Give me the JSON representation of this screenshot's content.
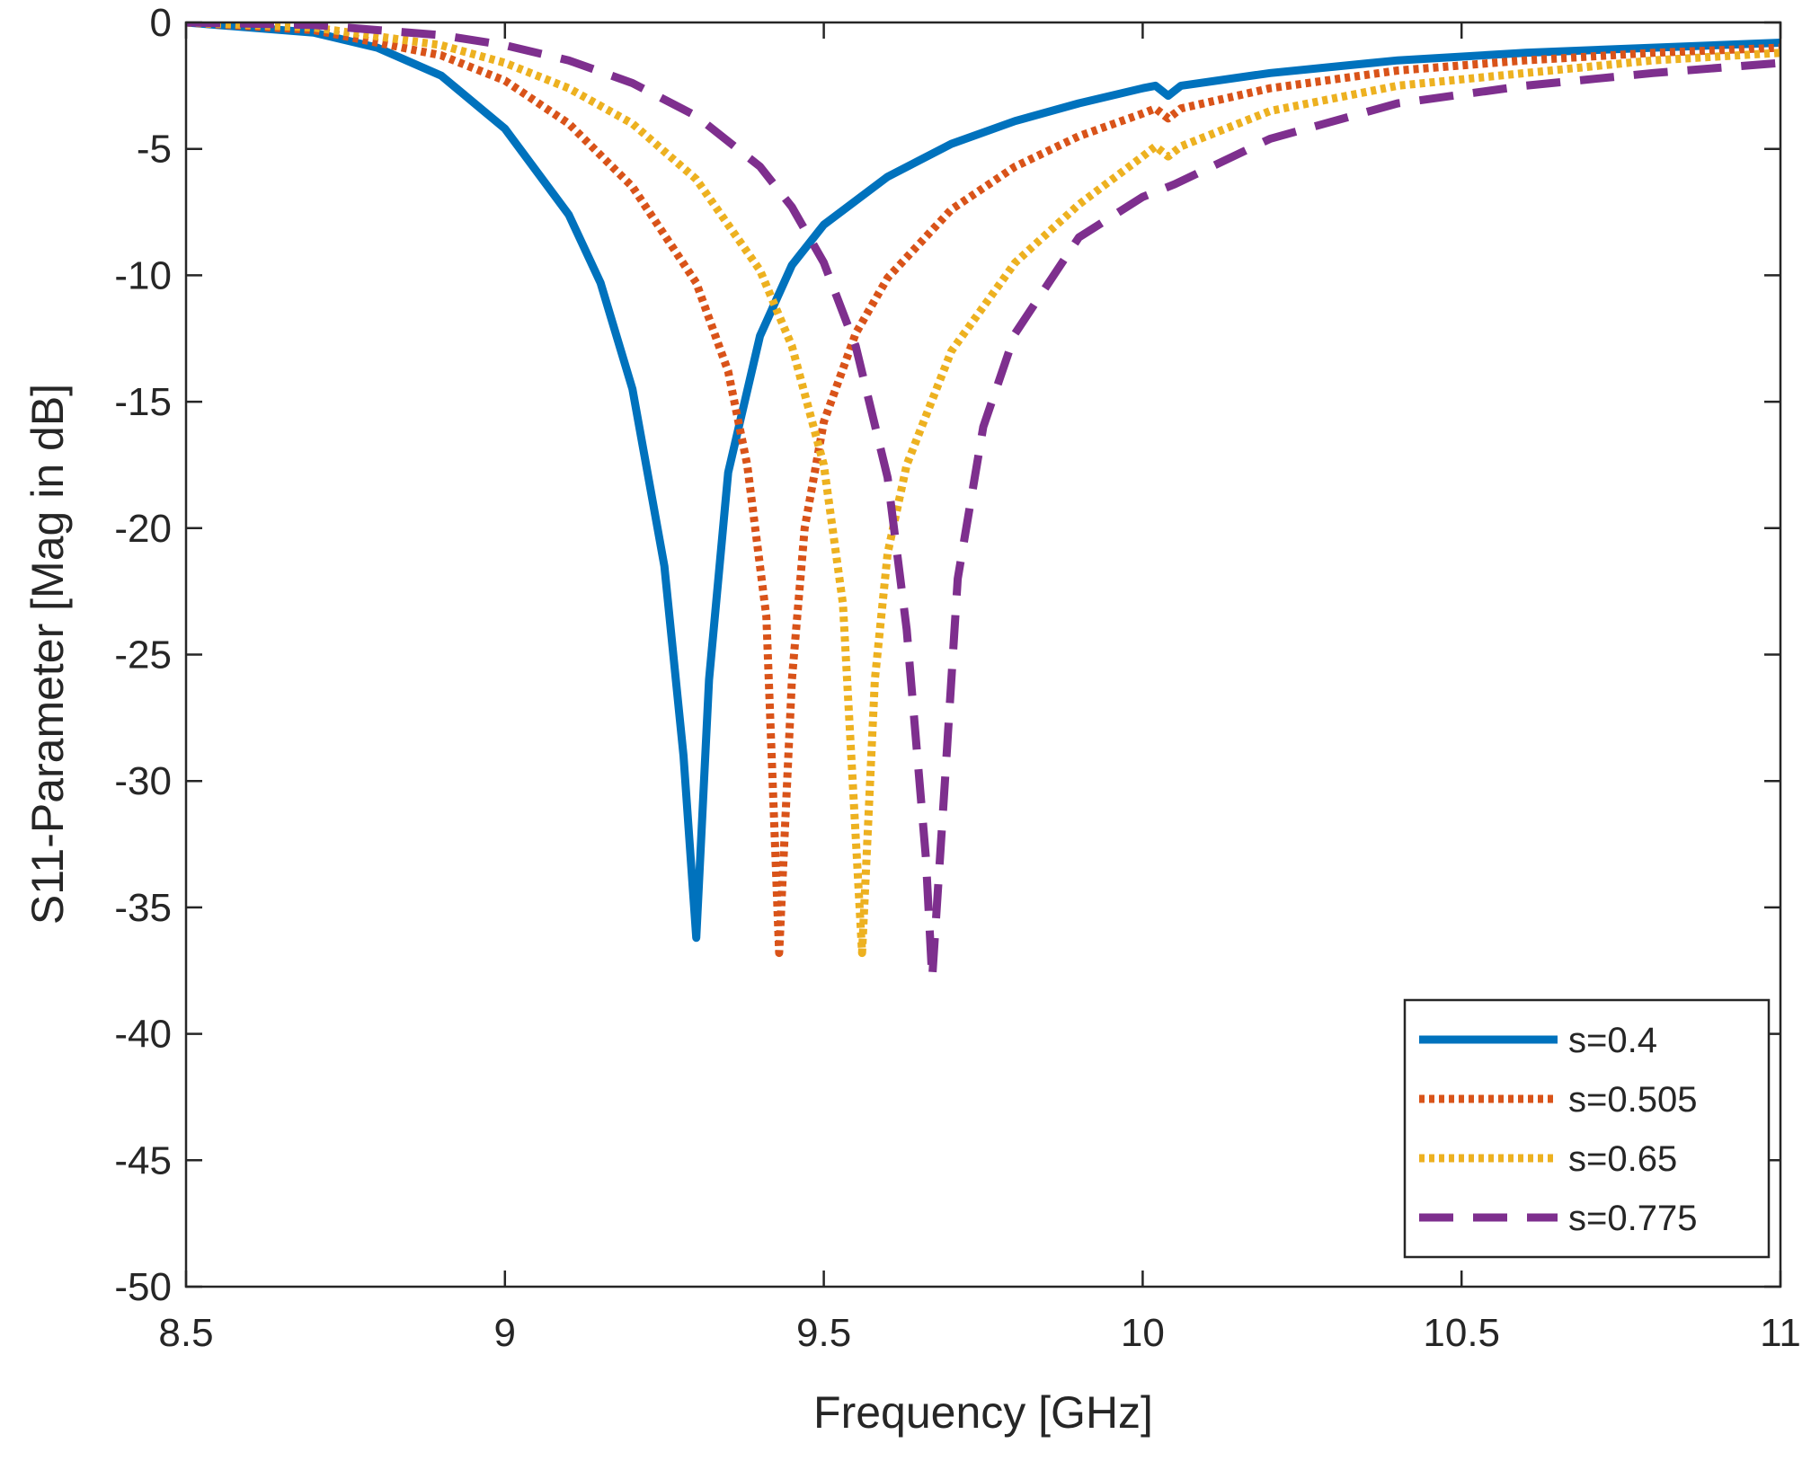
{
  "chart_data": {
    "type": "line",
    "title": "",
    "xlabel": "Frequency [GHz]",
    "ylabel": "S11-Parameter [Mag in dB]",
    "xlim": [
      8.5,
      11
    ],
    "ylim": [
      -50,
      0
    ],
    "xticks": [
      8.5,
      9,
      9.5,
      10,
      10.5,
      11
    ],
    "xtick_labels": [
      "8.5",
      "9",
      "9.5",
      "10",
      "10.5",
      "11"
    ],
    "yticks": [
      0,
      -5,
      -10,
      -15,
      -20,
      -25,
      -30,
      -35,
      -40,
      -45,
      -50
    ],
    "ytick_labels": [
      "0",
      "-5",
      "-10",
      "-15",
      "-20",
      "-25",
      "-30",
      "-35",
      "-40",
      "-45",
      "-50"
    ],
    "grid": false,
    "legend_position": "bottom-right",
    "series": [
      {
        "name": "s=0.4",
        "color": "#0072BD",
        "style": "solid",
        "points": [
          [
            8.5,
            0
          ],
          [
            8.7,
            -0.4
          ],
          [
            8.8,
            -1.0
          ],
          [
            8.9,
            -2.1
          ],
          [
            9.0,
            -4.2
          ],
          [
            9.1,
            -7.6
          ],
          [
            9.15,
            -10.3
          ],
          [
            9.2,
            -14.5
          ],
          [
            9.25,
            -21.5
          ],
          [
            9.28,
            -29.0
          ],
          [
            9.3,
            -36.2
          ],
          [
            9.32,
            -26.0
          ],
          [
            9.35,
            -17.8
          ],
          [
            9.4,
            -12.4
          ],
          [
            9.45,
            -9.6
          ],
          [
            9.5,
            -8.0
          ],
          [
            9.6,
            -6.1
          ],
          [
            9.7,
            -4.8
          ],
          [
            9.8,
            -3.9
          ],
          [
            9.9,
            -3.2
          ],
          [
            10.0,
            -2.6
          ],
          [
            10.02,
            -2.5
          ],
          [
            10.04,
            -2.9
          ],
          [
            10.06,
            -2.5
          ],
          [
            10.2,
            -2.0
          ],
          [
            10.4,
            -1.5
          ],
          [
            10.6,
            -1.2
          ],
          [
            10.8,
            -1.0
          ],
          [
            11.0,
            -0.8
          ]
        ]
      },
      {
        "name": "s=0.505",
        "color": "#D95319",
        "style": "dotted",
        "points": [
          [
            8.5,
            0
          ],
          [
            8.7,
            -0.3
          ],
          [
            8.9,
            -1.3
          ],
          [
            9.0,
            -2.3
          ],
          [
            9.1,
            -4.0
          ],
          [
            9.2,
            -6.5
          ],
          [
            9.3,
            -10.3
          ],
          [
            9.35,
            -13.8
          ],
          [
            9.38,
            -17.5
          ],
          [
            9.41,
            -23.5
          ],
          [
            9.43,
            -36.8
          ],
          [
            9.45,
            -26.0
          ],
          [
            9.47,
            -20.0
          ],
          [
            9.5,
            -15.8
          ],
          [
            9.55,
            -12.3
          ],
          [
            9.6,
            -10.1
          ],
          [
            9.7,
            -7.4
          ],
          [
            9.8,
            -5.7
          ],
          [
            9.9,
            -4.5
          ],
          [
            10.0,
            -3.6
          ],
          [
            10.02,
            -3.4
          ],
          [
            10.04,
            -3.8
          ],
          [
            10.06,
            -3.4
          ],
          [
            10.2,
            -2.6
          ],
          [
            10.4,
            -1.9
          ],
          [
            10.6,
            -1.5
          ],
          [
            10.8,
            -1.2
          ],
          [
            11.0,
            -1.0
          ]
        ]
      },
      {
        "name": "s=0.65",
        "color": "#EDB120",
        "style": "dotted",
        "points": [
          [
            8.5,
            0
          ],
          [
            8.7,
            -0.2
          ],
          [
            8.9,
            -0.9
          ],
          [
            9.0,
            -1.6
          ],
          [
            9.1,
            -2.6
          ],
          [
            9.2,
            -4.0
          ],
          [
            9.3,
            -6.2
          ],
          [
            9.4,
            -9.8
          ],
          [
            9.45,
            -12.8
          ],
          [
            9.5,
            -17.5
          ],
          [
            9.53,
            -23.0
          ],
          [
            9.56,
            -36.8
          ],
          [
            9.58,
            -26.0
          ],
          [
            9.6,
            -21.0
          ],
          [
            9.63,
            -17.5
          ],
          [
            9.7,
            -13.0
          ],
          [
            9.8,
            -9.5
          ],
          [
            9.9,
            -7.2
          ],
          [
            10.0,
            -5.3
          ],
          [
            10.02,
            -4.9
          ],
          [
            10.04,
            -5.3
          ],
          [
            10.06,
            -4.9
          ],
          [
            10.2,
            -3.5
          ],
          [
            10.4,
            -2.5
          ],
          [
            10.6,
            -2.0
          ],
          [
            10.8,
            -1.5
          ],
          [
            11.0,
            -1.2
          ]
        ]
      },
      {
        "name": "s=0.775",
        "color": "#7E2F8E",
        "style": "dashed",
        "points": [
          [
            8.5,
            0
          ],
          [
            8.7,
            -0.1
          ],
          [
            8.9,
            -0.5
          ],
          [
            9.0,
            -0.9
          ],
          [
            9.1,
            -1.5
          ],
          [
            9.2,
            -2.4
          ],
          [
            9.3,
            -3.7
          ],
          [
            9.4,
            -5.7
          ],
          [
            9.45,
            -7.3
          ],
          [
            9.5,
            -9.5
          ],
          [
            9.55,
            -12.8
          ],
          [
            9.6,
            -18.0
          ],
          [
            9.63,
            -24.0
          ],
          [
            9.66,
            -33.0
          ],
          [
            9.67,
            -37.8
          ],
          [
            9.69,
            -30.0
          ],
          [
            9.71,
            -22.0
          ],
          [
            9.75,
            -16.0
          ],
          [
            9.8,
            -12.3
          ],
          [
            9.9,
            -8.5
          ],
          [
            10.0,
            -6.9
          ],
          [
            10.02,
            -6.7
          ],
          [
            10.05,
            -6.4
          ],
          [
            10.1,
            -5.8
          ],
          [
            10.2,
            -4.6
          ],
          [
            10.4,
            -3.2
          ],
          [
            10.6,
            -2.5
          ],
          [
            10.8,
            -2.0
          ],
          [
            11.0,
            -1.6
          ]
        ]
      }
    ]
  }
}
